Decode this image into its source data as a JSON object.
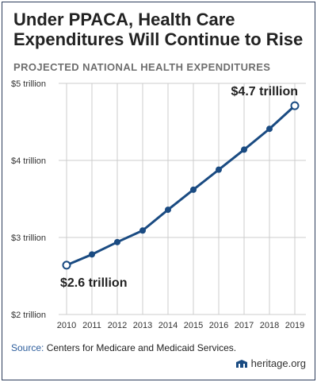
{
  "title": "Under PPACA, Health Care Expenditures Will Continue to Rise",
  "subtitle": "PROJECTED NATIONAL HEALTH EXPENDITURES",
  "source_label": "Source:",
  "source_text": "Centers for Medicare and Medicaid Services.",
  "brand": "heritage.org",
  "colors": {
    "line": "#1a4b82",
    "grid": "#cccccc",
    "text": "#333333"
  },
  "chart_data": {
    "type": "line",
    "x": [
      2010,
      2011,
      2012,
      2013,
      2014,
      2015,
      2016,
      2017,
      2018,
      2019
    ],
    "series": [
      {
        "values": [
          2.64,
          2.78,
          2.94,
          3.09,
          3.36,
          3.62,
          3.88,
          4.14,
          4.41,
          4.71
        ]
      }
    ],
    "ylim": [
      2,
      5
    ],
    "y_ticks": [
      {
        "value": 5,
        "label": "$5 trillion"
      },
      {
        "value": 4,
        "label": "$4 trillion"
      },
      {
        "value": 3,
        "label": "$3 trillion"
      },
      {
        "value": 2,
        "label": "$2 trillion"
      }
    ],
    "annotations": [
      {
        "index": 0,
        "label": "$2.6 trillion"
      },
      {
        "index": 9,
        "label": "$4.7 trillion"
      }
    ],
    "grid": true
  }
}
